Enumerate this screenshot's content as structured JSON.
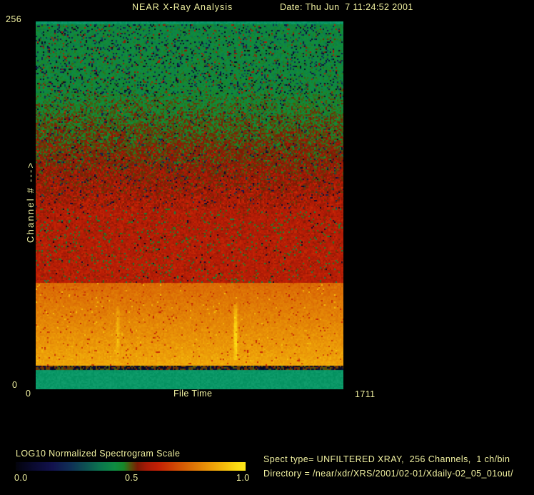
{
  "app": {
    "background": "#000000",
    "text_color": "#f0f0a0"
  },
  "header": {
    "title": "NEAR X-Ray Analysis",
    "date": "Date: Thu Jun  7 11:24:52 2001"
  },
  "plot": {
    "y_max_label": "256",
    "y_min_label": "0",
    "y_axis_label": "Channel # --->",
    "x_min_label": "0",
    "x_axis_label": "File Time",
    "x_max_label": "1711"
  },
  "info": {
    "spect_line": "Spect type= UNFILTERED XRAY,  256 Channels,  1 ch/bin",
    "directory_line": "Directory = /near/xdr/XRS/2001/02-01/Xdaily-02_05_01out/"
  },
  "chart_data": {
    "type": "heatmap",
    "title": "NEAR X-Ray Analysis",
    "xlabel": "File Time",
    "ylabel": "Channel # --->",
    "xlim": [
      0,
      1711
    ],
    "ylim": [
      0,
      256
    ],
    "x_ticks": [
      0,
      1711
    ],
    "y_ticks": [
      0,
      256
    ],
    "colorbar": {
      "label": "LOG10 Normalized Spectrogram Scale",
      "tick_labels": [
        "0.0",
        "0.5",
        "1.0"
      ],
      "ticks": [
        0.0,
        0.5,
        1.0
      ],
      "stops": [
        [
          0.0,
          "#03030c"
        ],
        [
          0.08,
          "#0a0a30"
        ],
        [
          0.16,
          "#12124e"
        ],
        [
          0.24,
          "#0f3056"
        ],
        [
          0.31,
          "#0d5452"
        ],
        [
          0.37,
          "#0b764e"
        ],
        [
          0.43,
          "#0e8c42"
        ],
        [
          0.47,
          "#178628"
        ],
        [
          0.5,
          "#55500a"
        ],
        [
          0.53,
          "#7c1a04"
        ],
        [
          0.57,
          "#a81a06"
        ],
        [
          0.62,
          "#c22005"
        ],
        [
          0.67,
          "#cc3a04"
        ],
        [
          0.73,
          "#d65c04"
        ],
        [
          0.79,
          "#e07c06"
        ],
        [
          0.85,
          "#ec9c08"
        ],
        [
          0.91,
          "#f4bc0c"
        ],
        [
          0.96,
          "#fcda12"
        ],
        [
          1.0,
          "#ffe81a"
        ]
      ]
    },
    "bands": [
      {
        "label": "top edge line",
        "channels": [
          254.5,
          256
        ],
        "solid": "#0a9766"
      },
      {
        "label": "upper quiet channels green speckle",
        "channels": [
          205,
          254.5
        ],
        "value": [
          0.445,
          0.425
        ],
        "spread": 0.04,
        "outliers": [
          {
            "p": 0.12,
            "range": [
              0.02,
              0.32
            ]
          },
          {
            "p": 0.035,
            "range": [
              0.53,
              0.6
            ]
          }
        ]
      },
      {
        "label": "green to red transition",
        "channels": [
          126,
          205
        ],
        "value": [
          0.585,
          0.455
        ],
        "spread": 0.05,
        "outliers": [
          {
            "p": 0.05,
            "range": [
              0.03,
              0.3
            ]
          },
          {
            "p": 0.01,
            "range": [
              0.6,
              0.66
            ]
          }
        ]
      },
      {
        "label": "red band",
        "channels": [
          74,
          126
        ],
        "value": [
          0.6,
          0.59
        ],
        "spread": 0.035,
        "outliers": [
          {
            "p": 0.06,
            "range": [
              0.45,
              0.53
            ]
          },
          {
            "p": 0.02,
            "range": [
              0.4,
              0.44
            ]
          },
          {
            "p": 0.01,
            "range": [
              0.02,
              0.1
            ]
          }
        ]
      },
      {
        "label": "bright orange low-channel band",
        "channels": [
          16,
          74
        ],
        "value": [
          0.87,
          0.755
        ],
        "spread": 0.022,
        "outliers": [
          {
            "p": 0.03,
            "range": [
              0.62,
              0.7
            ]
          },
          {
            "p": 0.012,
            "range": [
              0.88,
              0.93
            ]
          }
        ]
      },
      {
        "label": "dark separator line",
        "channels": [
          13.5,
          16
        ],
        "value": [
          0.51,
          0.51
        ],
        "spread": 0.02,
        "outliers": [
          {
            "p": 0.5,
            "range": [
              0.02,
              0.12
            ]
          }
        ]
      },
      {
        "label": "bottom edge strip",
        "channels": [
          0,
          13.5
        ],
        "solid": "#0a9766"
      }
    ],
    "transients": [
      {
        "file_time": 456,
        "channels": [
          22,
          58
        ],
        "boost": 0.09
      },
      {
        "file_time": 1112,
        "channels": [
          20,
          60
        ],
        "boost": 0.17
      }
    ]
  }
}
